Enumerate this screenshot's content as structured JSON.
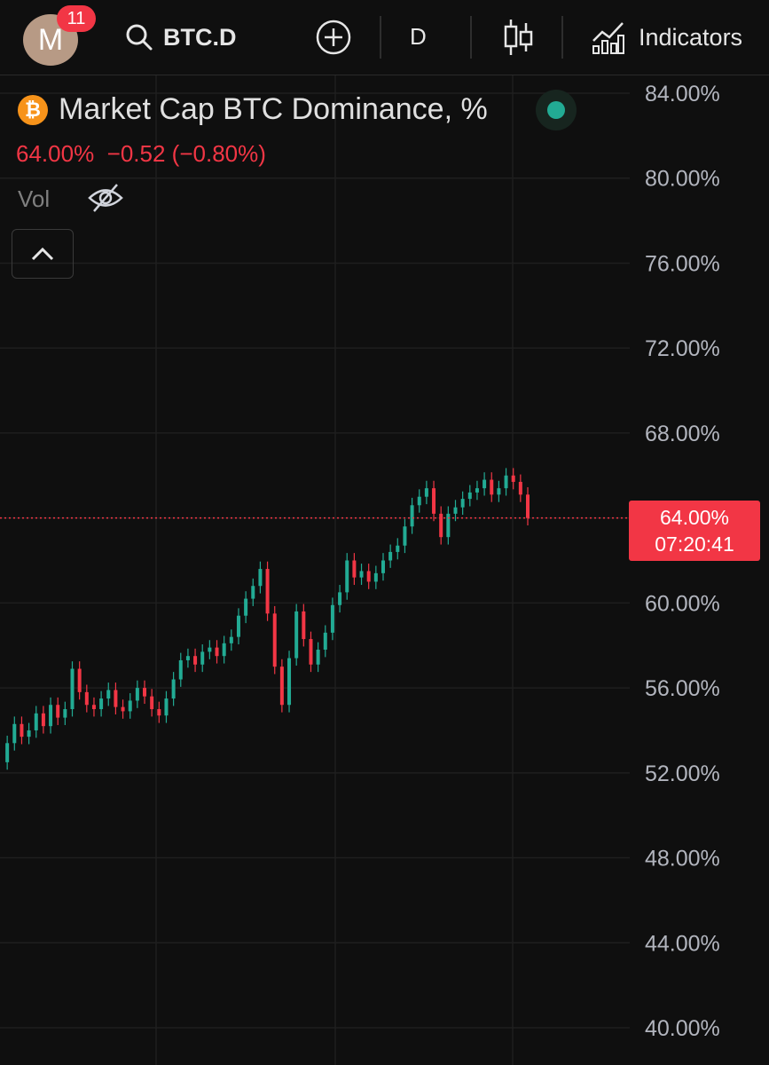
{
  "header": {
    "avatar_letter": "M",
    "notification_count": "11",
    "symbol": "BTC.D",
    "interval": "D",
    "indicators_label": "Indicators",
    "icons": [
      "search-icon",
      "add-circle-icon",
      "candlestick-icon",
      "indicators-chart-icon"
    ]
  },
  "legend": {
    "title": "Market Cap BTC Dominance, %",
    "coin_glyph": "₿",
    "price": "64.00%",
    "change": "−0.52",
    "change_pct": "(−0.80%)",
    "vol_label": "Vol",
    "status": "market-open",
    "colors": {
      "down": "#f23645",
      "up": "#22ab94",
      "status": "#22ab94"
    }
  },
  "price_tag": {
    "value": "64.00%",
    "countdown": "07:20:41"
  },
  "chart_data": {
    "type": "line",
    "title": "Market Cap BTC Dominance, %",
    "xlabel": "",
    "ylabel": "",
    "ylim": [
      38,
      86
    ],
    "y_ticks": [
      "84.00%",
      "80.00%",
      "76.00%",
      "72.00%",
      "68.00%",
      "64.00%",
      "60.00%",
      "56.00%",
      "52.00%",
      "48.00%",
      "44.00%",
      "40.00%"
    ],
    "current_value": 64.0,
    "grid": true,
    "series": [
      {
        "values": [
          52.5,
          53.4,
          54.3,
          53.7,
          54.0,
          54.8,
          54.2,
          55.2,
          54.6,
          55.0,
          56.9,
          55.8,
          55.2,
          55.0,
          55.5,
          55.9,
          55.1,
          54.9,
          55.4,
          56.0,
          55.6,
          55.0,
          54.7,
          55.5,
          56.4,
          57.3,
          57.5,
          57.1,
          57.7,
          57.9,
          57.5,
          58.1,
          58.4,
          59.4,
          60.2,
          60.8,
          61.6,
          59.5,
          57.0,
          55.2,
          57.4,
          59.6,
          58.3,
          57.1,
          57.8,
          58.6,
          59.9,
          60.5,
          62.0,
          61.2,
          61.5,
          61.0,
          61.4,
          62.0,
          62.4,
          62.7,
          63.6,
          64.6,
          65.0,
          65.4,
          64.2,
          63.1,
          64.2,
          64.5,
          64.9,
          65.2,
          65.4,
          65.8,
          65.1,
          65.4,
          66.0,
          65.7,
          65.1,
          64.0
        ]
      }
    ]
  }
}
